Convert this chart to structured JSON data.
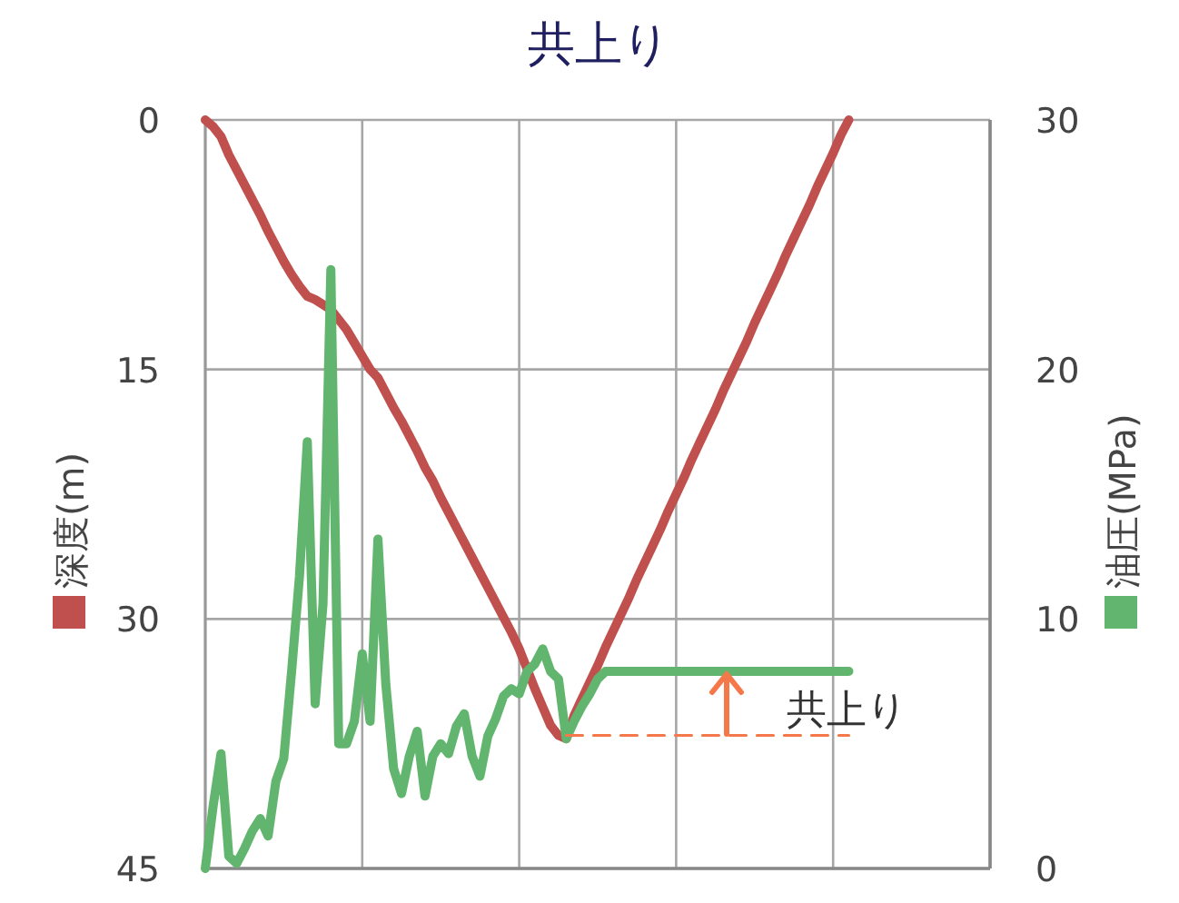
{
  "chart_data": {
    "type": "line",
    "title": "共上り",
    "ylabel": "深度(m)",
    "y2label": "油圧(MPa)",
    "categories": [
      null,
      null,
      null,
      null,
      null,
      null,
      null,
      null,
      null,
      null,
      null,
      null,
      null,
      null,
      null,
      null,
      null,
      null,
      null,
      null,
      null,
      null,
      null,
      null,
      null,
      null,
      null,
      null,
      null,
      null,
      null,
      null,
      null,
      null,
      null,
      null,
      null,
      null,
      null,
      null,
      null,
      null,
      null,
      null,
      null,
      null,
      null,
      null,
      null,
      null,
      null,
      null,
      null,
      null,
      null,
      null,
      null,
      null,
      null,
      null,
      null,
      null,
      null,
      null,
      null,
      null,
      null,
      null,
      null,
      null,
      null,
      null,
      null,
      null,
      null,
      null,
      null,
      null,
      null,
      null,
      null,
      null,
      null,
      null,
      null,
      null,
      null,
      null,
      null,
      null,
      null,
      null,
      null,
      null,
      null,
      null,
      null,
      null,
      null,
      null,
      null
    ],
    "ylim": [
      45,
      0
    ],
    "yticks": [
      0,
      15,
      30,
      45
    ],
    "y2lim": [
      0,
      30
    ],
    "y2ticks": [
      0,
      10,
      20,
      30
    ],
    "grid": true,
    "series": [
      {
        "color": "#c0504d",
        "values": [
          0,
          0.4,
          1.0,
          2.1,
          3.0,
          3.9,
          4.8,
          5.7,
          6.7,
          7.6,
          8.5,
          9.3,
          10.0,
          10.6,
          10.8,
          11.1,
          11.4,
          12.0,
          12.6,
          13.4,
          14.2,
          15.0,
          15.5,
          16.4,
          17.3,
          18.1,
          19.0,
          19.9,
          20.9,
          21.7,
          22.7,
          23.6,
          24.5,
          25.4,
          26.3,
          27.2,
          28.1,
          29.0,
          29.9,
          30.8,
          31.8,
          33.0,
          34.2,
          35.3,
          36.4,
          37.0,
          37.2,
          35.8,
          34.8,
          33.8,
          32.8,
          31.7,
          30.7,
          29.7,
          28.7,
          27.6,
          26.6,
          25.6,
          24.6,
          23.5,
          22.5,
          21.5,
          20.4,
          19.4,
          18.4,
          17.4,
          16.3,
          15.3,
          14.3,
          13.3,
          12.2,
          11.2,
          10.2,
          9.2,
          8.1,
          7.1,
          6.1,
          5.1,
          4.0,
          3.0,
          2.0,
          0.9,
          0,
          null,
          null,
          null,
          null,
          null,
          null,
          null,
          null,
          null,
          null,
          null,
          null,
          null,
          null,
          null,
          null,
          null,
          null
        ]
      },
      {
        "color": "#62b56e",
        "axis": "y2",
        "values": [
          0,
          2.5,
          4.6,
          0.5,
          0.2,
          0.8,
          1.5,
          2.0,
          1.3,
          3.5,
          4.4,
          7.9,
          11.7,
          17.1,
          6.6,
          10.6,
          24.0,
          5.0,
          5.0,
          5.9,
          8.6,
          5.9,
          13.2,
          7.4,
          4.0,
          3.0,
          4.5,
          5.5,
          2.9,
          4.5,
          5.0,
          4.6,
          5.7,
          6.2,
          4.5,
          3.7,
          5.3,
          6.0,
          6.9,
          7.2,
          7.0,
          7.9,
          8.2,
          8.8,
          7.9,
          7.6,
          5.2,
          5.9,
          6.5,
          7.0,
          7.6,
          7.9,
          7.9,
          7.9,
          7.9,
          7.9,
          7.9,
          7.9,
          7.9,
          7.9,
          7.9,
          7.9,
          7.9,
          7.9,
          7.9,
          7.9,
          7.9,
          7.9,
          7.9,
          7.9,
          7.9,
          7.9,
          7.9,
          7.9,
          7.9,
          7.9,
          7.9,
          7.9,
          7.9,
          7.9,
          7.9,
          7.9,
          7.9,
          null,
          null,
          null,
          null,
          null,
          null,
          null,
          null,
          null,
          null,
          null,
          null,
          null,
          null,
          null,
          null,
          null,
          null
        ]
      },
      {
        "color": "#f4784a",
        "line_style": "dashed",
        "values": [
          null,
          null,
          null,
          null,
          null,
          null,
          null,
          null,
          null,
          null,
          null,
          null,
          null,
          null,
          null,
          null,
          null,
          null,
          null,
          null,
          null,
          null,
          null,
          null,
          null,
          null,
          null,
          null,
          null,
          null,
          null,
          null,
          null,
          null,
          null,
          null,
          null,
          null,
          null,
          null,
          null,
          null,
          null,
          null,
          null,
          null,
          37,
          37,
          37,
          37,
          37,
          37,
          37,
          37,
          37,
          37,
          37,
          37,
          37,
          37,
          37,
          37,
          37,
          37,
          37,
          37,
          37,
          37,
          37,
          37,
          37,
          37,
          37,
          37,
          37,
          37,
          37,
          37,
          37,
          37,
          37,
          37,
          37,
          null,
          null,
          null,
          null,
          null,
          null,
          null,
          null,
          null,
          null,
          null,
          null,
          null,
          null,
          null,
          null,
          null,
          null
        ]
      }
    ],
    "annotations": [
      "共上り"
    ]
  }
}
